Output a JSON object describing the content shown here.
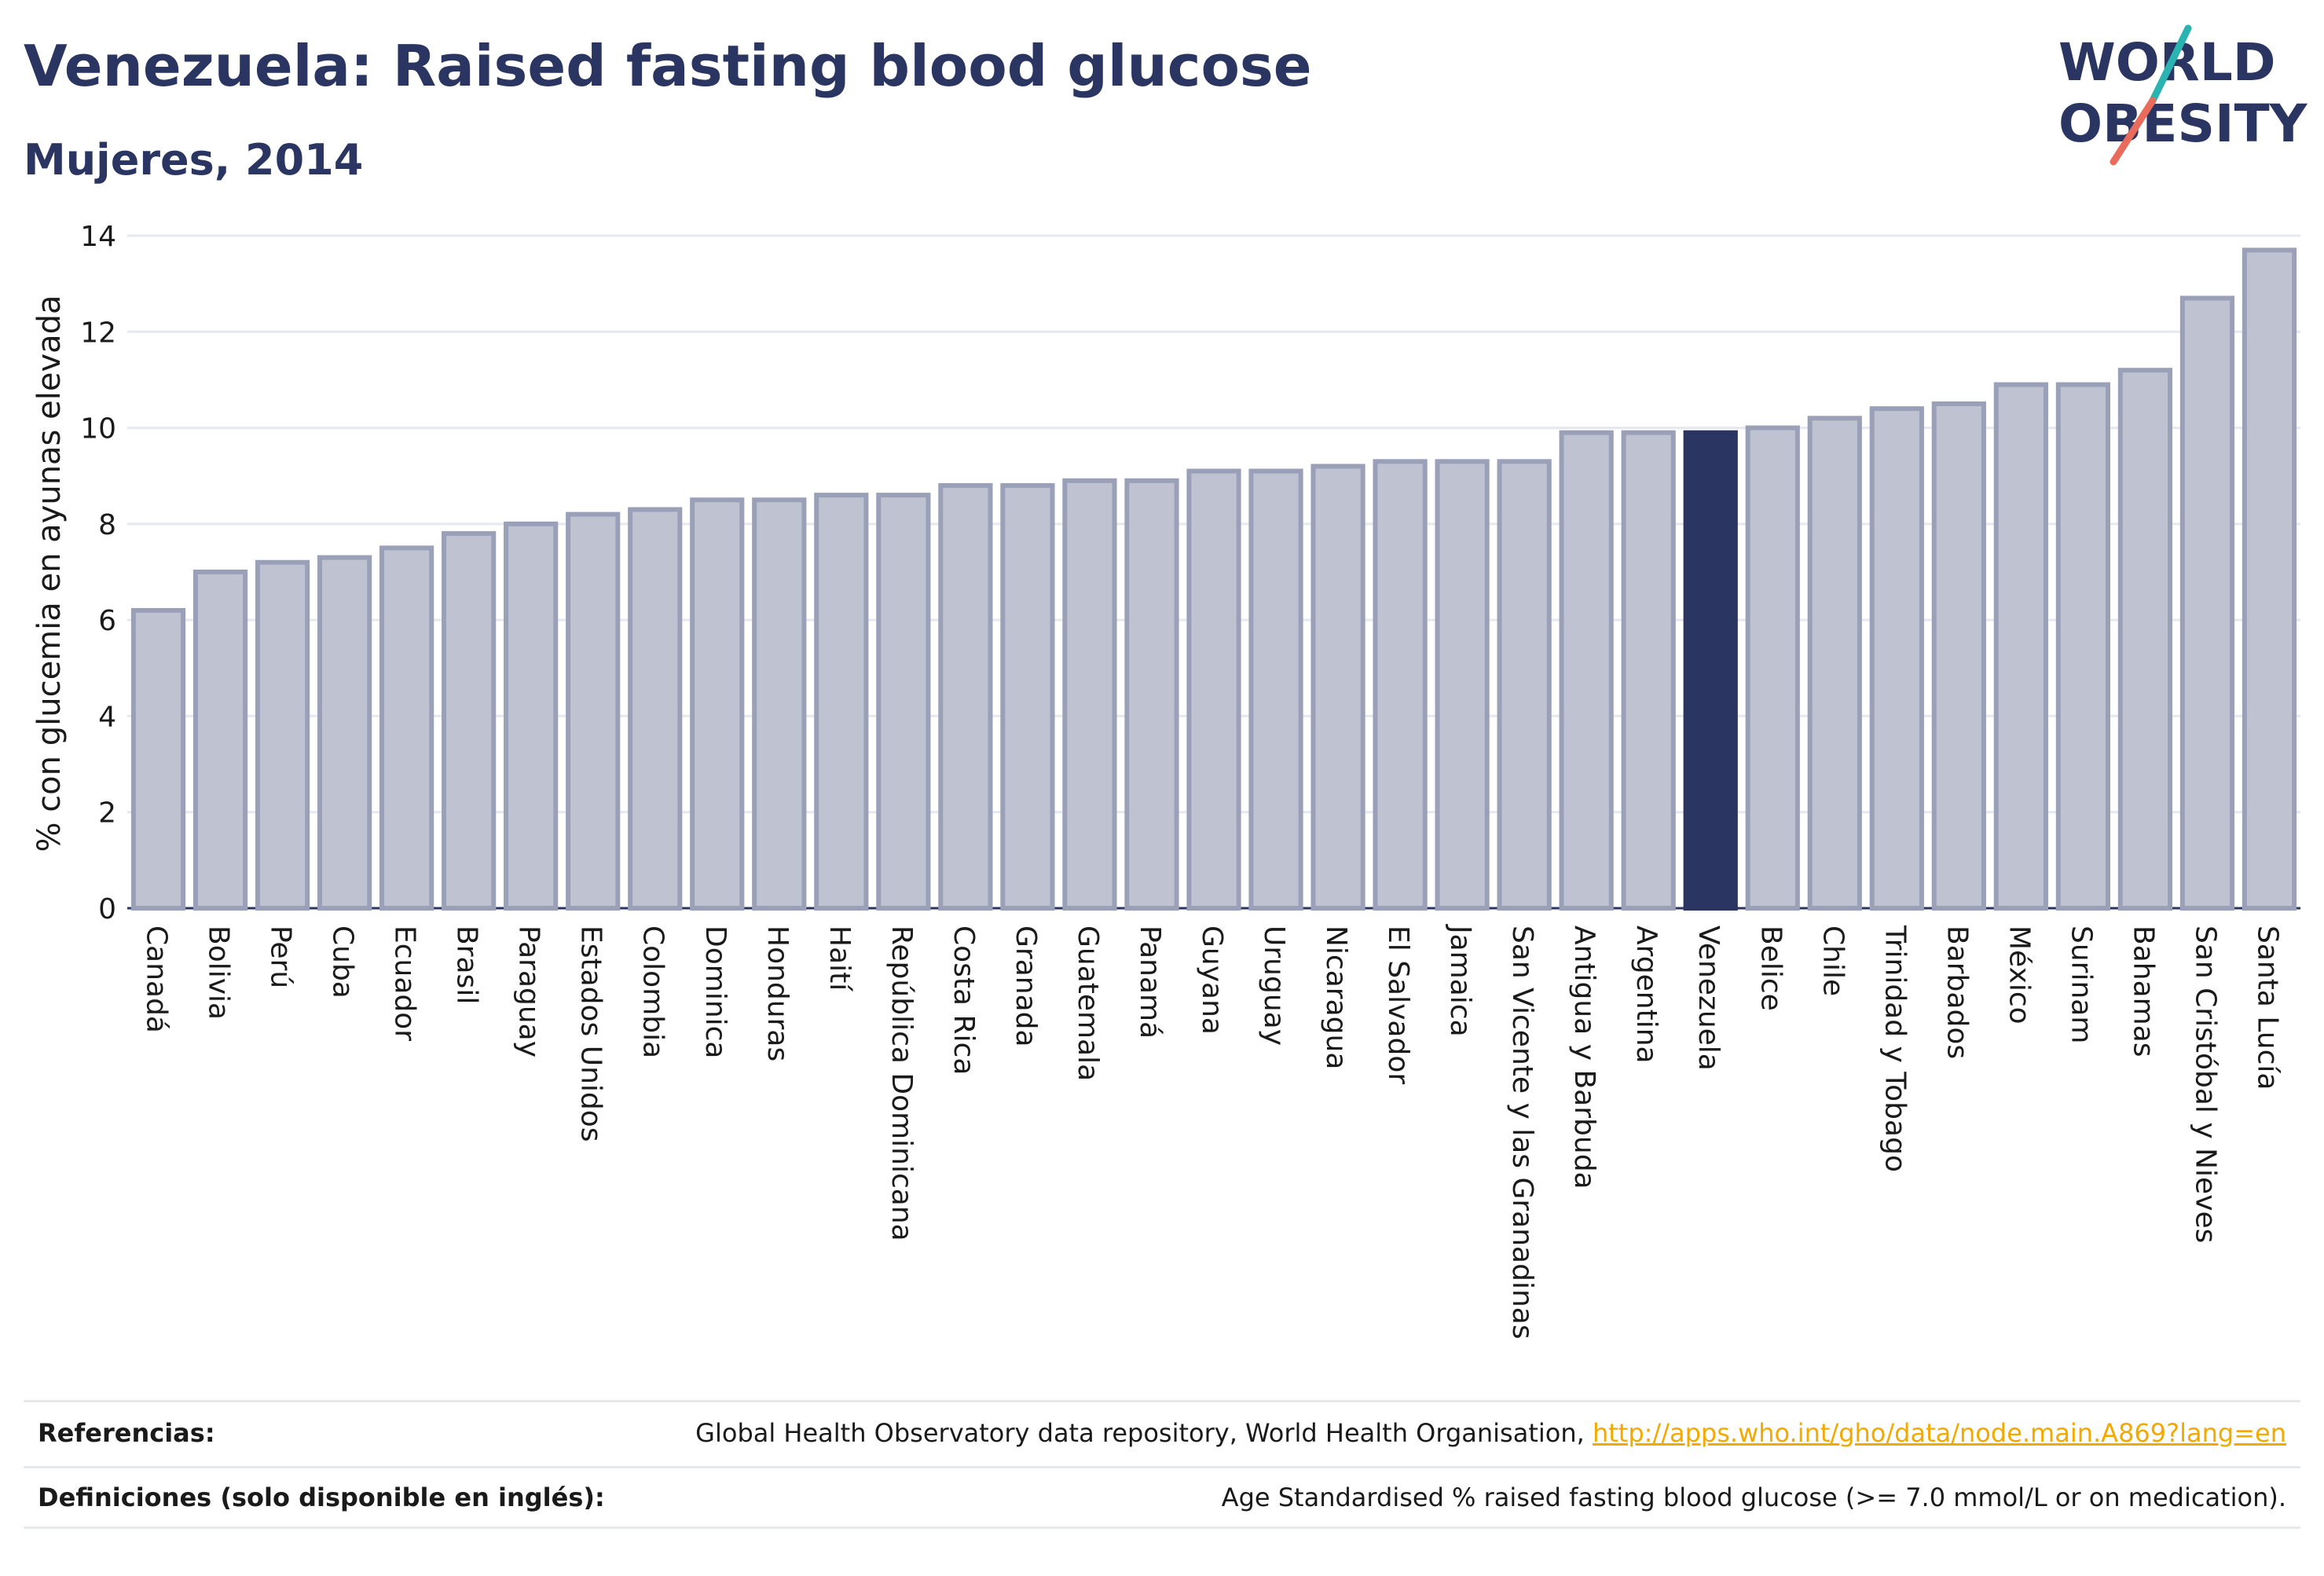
{
  "header": {
    "title": "Venezuela: Raised fasting blood glucose",
    "subtitle": "Mujeres, 2014"
  },
  "logo": {
    "line1": "WORLD",
    "line2": "OBESITY",
    "icon": "world-obesity-logo"
  },
  "colors": {
    "bar": "#bfc3d1",
    "bar_border": "#9aa0b8",
    "highlight": "#2a3561",
    "grid": "#e6e8ef",
    "accent_teal": "#2ab3b1",
    "accent_coral": "#e96b5b",
    "link": "#f2a900"
  },
  "chart_data": {
    "type": "bar",
    "title": "",
    "xlabel": "",
    "ylabel": "% con glucemia en ayunas elevada",
    "ylim": [
      0,
      14
    ],
    "yticks": [
      0,
      2,
      4,
      6,
      8,
      10,
      12,
      14
    ],
    "grid": true,
    "highlight": "Venezuela",
    "categories": [
      "Canadá",
      "Bolivia",
      "Perú",
      "Cuba",
      "Ecuador",
      "Brasil",
      "Paraguay",
      "Estados Unidos",
      "Colombia",
      "Dominica",
      "Honduras",
      "Haití",
      "República Dominicana",
      "Costa Rica",
      "Granada",
      "Guatemala",
      "Panamá",
      "Guyana",
      "Uruguay",
      "Nicaragua",
      "El Salvador",
      "Jamaica",
      "San Vicente y las Granadinas",
      "Antigua y Barbuda",
      "Argentina",
      "Venezuela",
      "Belice",
      "Chile",
      "Trinidad y Tobago",
      "Barbados",
      "México",
      "Surinam",
      "Bahamas",
      "San Cristóbal y Nieves",
      "Santa Lucía"
    ],
    "values": [
      6.2,
      7.0,
      7.2,
      7.3,
      7.5,
      7.8,
      8.0,
      8.2,
      8.3,
      8.5,
      8.5,
      8.6,
      8.6,
      8.8,
      8.8,
      8.9,
      8.9,
      9.1,
      9.1,
      9.2,
      9.3,
      9.3,
      9.3,
      9.9,
      9.9,
      9.9,
      10.0,
      10.2,
      10.4,
      10.5,
      10.9,
      10.9,
      11.2,
      12.7,
      13.7
    ]
  },
  "footer": {
    "ref_label": "Referencias:",
    "ref_text": "Global Health Observatory data repository, World Health Organisation, ",
    "ref_link": "http://apps.who.int/gho/data/node.main.A869?lang=en",
    "def_label": "Definiciones (solo disponible en inglés):",
    "def_text": "Age Standardised % raised fasting blood glucose (>= 7.0 mmol/L or on medication)."
  }
}
